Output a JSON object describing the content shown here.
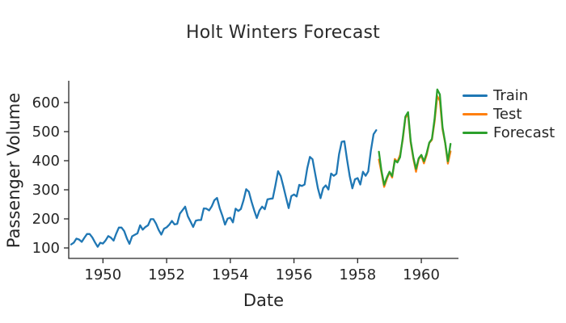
{
  "window": {
    "background": "#ffffff"
  },
  "chart_data": {
    "type": "line",
    "title": "Holt Winters Forecast",
    "xlabel": "Date",
    "ylabel": "Passenger Volume",
    "grid": false,
    "legend_position": "outside-right",
    "axis_color": "#262626",
    "text_color": "#262626",
    "x_axis": {
      "unit": "months since Jan 1949",
      "tick_labels": [
        "1950",
        "1952",
        "1954",
        "1956",
        "1958",
        "1960"
      ],
      "tick_months": [
        12,
        36,
        60,
        84,
        108,
        132
      ],
      "range_months": [
        -0.9,
        146
      ]
    },
    "y_axis": {
      "tick_labels": [
        "100",
        "200",
        "300",
        "400",
        "500",
        "600"
      ],
      "tick_values": [
        100,
        200,
        300,
        400,
        500,
        600
      ],
      "range": [
        64,
        675
      ]
    },
    "series": [
      {
        "name": "Train",
        "color": "#1f77b4",
        "start_month_index": 0,
        "x_start": "1949-01",
        "x_end": "1958-08",
        "values": [
          112,
          118,
          132,
          129,
          121,
          135,
          148,
          148,
          136,
          119,
          104,
          118,
          115,
          126,
          141,
          135,
          125,
          149,
          170,
          170,
          158,
          133,
          114,
          140,
          145,
          150,
          178,
          163,
          172,
          178,
          199,
          199,
          184,
          162,
          146,
          166,
          171,
          180,
          193,
          181,
          183,
          218,
          230,
          242,
          209,
          191,
          172,
          194,
          196,
          196,
          236,
          235,
          229,
          243,
          264,
          272,
          237,
          211,
          180,
          201,
          204,
          188,
          235,
          227,
          234,
          264,
          302,
          293,
          259,
          229,
          203,
          229,
          242,
          233,
          267,
          269,
          270,
          315,
          364,
          347,
          312,
          274,
          237,
          278,
          284,
          277,
          317,
          313,
          318,
          374,
          413,
          405,
          355,
          306,
          271,
          306,
          315,
          301,
          356,
          348,
          355,
          422,
          465,
          467,
          404,
          347,
          305,
          336,
          340,
          318,
          362,
          348,
          363,
          435,
          491,
          505
        ]
      },
      {
        "name": "Test",
        "color": "#ff7f0e",
        "start_month_index": 116,
        "x_start": "1958-09",
        "x_end": "1960-12",
        "values": [
          404,
          359,
          310,
          337,
          360,
          342,
          406,
          396,
          420,
          472,
          548,
          559,
          463,
          407,
          362,
          405,
          417,
          391,
          419,
          461,
          472,
          535,
          622,
          606,
          508,
          461,
          390,
          432
        ]
      },
      {
        "name": "Forecast",
        "color": "#2ca02c",
        "start_month_index": 116,
        "x_start": "1958-09",
        "x_end": "1960-12",
        "values": [
          431,
          365,
          317,
          342,
          362,
          347,
          401,
          394,
          412,
          478,
          552,
          567,
          468,
          412,
          372,
          408,
          420,
          398,
          425,
          462,
          475,
          545,
          645,
          628,
          515,
          462,
          398,
          458
        ]
      }
    ]
  }
}
